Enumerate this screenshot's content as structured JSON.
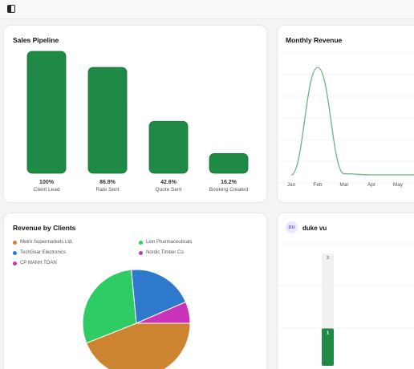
{
  "header": {
    "toggle_icon": "sidebar-toggle-icon"
  },
  "colors": {
    "pipeline": "#1f8a45",
    "line": "#69b57f",
    "grid": "#efefef"
  },
  "pipeline": {
    "title": "Sales Pipeline",
    "chart_data": {
      "type": "bar",
      "categories": [
        "Client Lead",
        "Rate Sent",
        "Quote Sent",
        "Booking Created"
      ],
      "values": [
        100,
        86.8,
        42.6,
        16.2
      ],
      "labels": [
        "100%",
        "86.8%",
        "42.6%",
        "16.2%"
      ],
      "title": "Sales Pipeline",
      "ylim": [
        0,
        100
      ],
      "grid": false
    }
  },
  "revenue": {
    "title": "Monthly Revenue",
    "chart_data": {
      "type": "line",
      "x": [
        "Jan",
        "Feb",
        "Mar",
        "Apr",
        "May"
      ],
      "values": [
        0,
        100,
        1,
        0,
        0
      ],
      "title": "Monthly Revenue",
      "grid": true
    }
  },
  "clients": {
    "title": "Revenue by Clients",
    "chart_data": {
      "type": "pie",
      "series": [
        {
          "name": "Metro Supermarkets Ltd.",
          "value": 44,
          "color": "#cd8431"
        },
        {
          "name": "Lion Pharmaceuticals",
          "value": 29.5,
          "color": "#2fcc66"
        },
        {
          "name": "TechGear Electronics",
          "value": 20,
          "color": "#2f79cc"
        },
        {
          "name": "Nordic Timber Co.",
          "value": 6.5,
          "color": "#cc33bb"
        },
        {
          "name": "CP MANH TOAN",
          "value": 0,
          "color": "#cc33bb"
        }
      ],
      "legend_position": "top"
    }
  },
  "user": {
    "initials": "DU",
    "name": "duke vu",
    "chart_data": {
      "type": "bar",
      "series": [
        {
          "name": "",
          "values": [
            2
          ],
          "color": "#f1f1f1",
          "label": "3"
        },
        {
          "name": "",
          "values": [
            1
          ],
          "color": "#1f8a45",
          "label": "1"
        }
      ],
      "ylim": [
        0,
        3
      ],
      "grid": true
    }
  }
}
